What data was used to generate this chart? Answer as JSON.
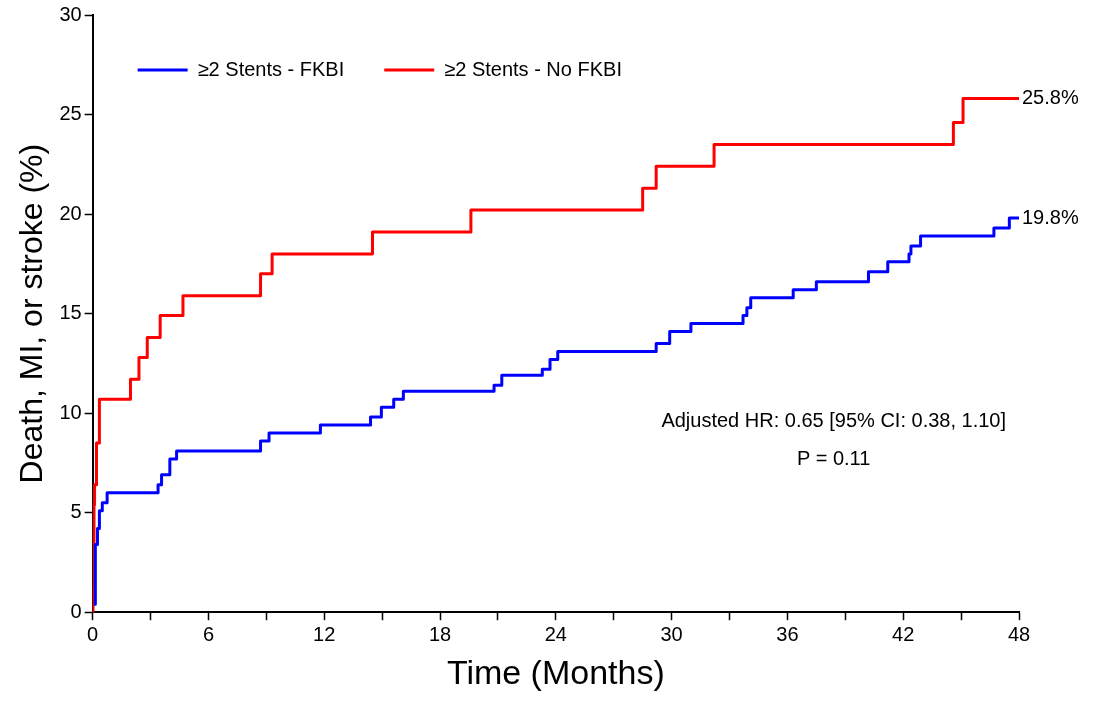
{
  "chart_data": {
    "type": "step",
    "xlabel": "Time (Months)",
    "ylabel": "Death, MI, or stroke (%)",
    "xlim": [
      0,
      48
    ],
    "xticks": [
      0,
      {
        "value": 3,
        "label": null
      },
      6,
      {
        "value": 9,
        "label": null
      },
      12,
      {
        "value": 15,
        "label": null
      },
      18,
      {
        "value": 21,
        "label": null
      },
      24,
      {
        "value": 27,
        "label": null
      },
      30,
      {
        "value": 33,
        "label": null
      },
      36,
      {
        "value": 39,
        "label": null
      },
      42,
      {
        "value": 45,
        "label": null
      },
      48
    ],
    "ylim": [
      0,
      30
    ],
    "yticks": [
      0,
      5,
      10,
      15,
      20,
      25,
      30
    ],
    "grid": false,
    "legend": "top left",
    "marker": "none",
    "line_style": "solid",
    "series": [
      {
        "name": "≥2 Stents - FKBI",
        "color": "#0000ff",
        "x": [
          0.07,
          0.14,
          0.25,
          0.35,
          0.5,
          0.75,
          3.39,
          3.57,
          4.0,
          4.35,
          8.7,
          9.14,
          11.8,
          14.4,
          14.96,
          15.6,
          16.1,
          20.8,
          21.2,
          23.3,
          23.7,
          24.1,
          29.2,
          29.9,
          31.0,
          33.7,
          33.9,
          34.1,
          36.3,
          37.5,
          40.2,
          41.2,
          42.3,
          42.4,
          42.9,
          46.7,
          47.5,
          48
        ],
        "values": [
          0.4,
          3.4,
          4.2,
          5.1,
          5.5,
          6.0,
          6.4,
          6.9,
          7.7,
          8.1,
          8.6,
          9.0,
          9.4,
          9.8,
          10.3,
          10.7,
          11.1,
          11.4,
          11.9,
          12.2,
          12.7,
          13.1,
          13.5,
          14.1,
          14.5,
          14.9,
          15.3,
          15.8,
          16.2,
          16.6,
          17.1,
          17.6,
          18.0,
          18.4,
          18.9,
          19.3,
          19.8,
          19.8
        ]
      },
      {
        "name": "≥2 Stents - No FKBI",
        "color": "#ff0000",
        "x": [
          0,
          0.02,
          0.07,
          0.1,
          0.2,
          0.35,
          1.96,
          2.4,
          2.83,
          3.5,
          4.68,
          8.7,
          9.3,
          14.5,
          19.6,
          28.5,
          29.2,
          32.2,
          44.6,
          45.1,
          48
        ],
        "values": [
          0,
          1.1,
          5.4,
          6.4,
          8.5,
          10.7,
          11.7,
          12.8,
          13.8,
          14.9,
          15.9,
          17.0,
          18.0,
          19.1,
          20.2,
          21.3,
          22.4,
          23.5,
          24.6,
          25.8,
          25.8
        ]
      }
    ],
    "annotations": [
      {
        "text": "25.8%",
        "x": 48,
        "y": 25.8
      },
      {
        "text": "19.8%",
        "x": 48,
        "y": 19.8
      },
      "Adjusted HR: 0.65 [95% CI: 0.38, 1.10]",
      "P = 0.11"
    ]
  }
}
